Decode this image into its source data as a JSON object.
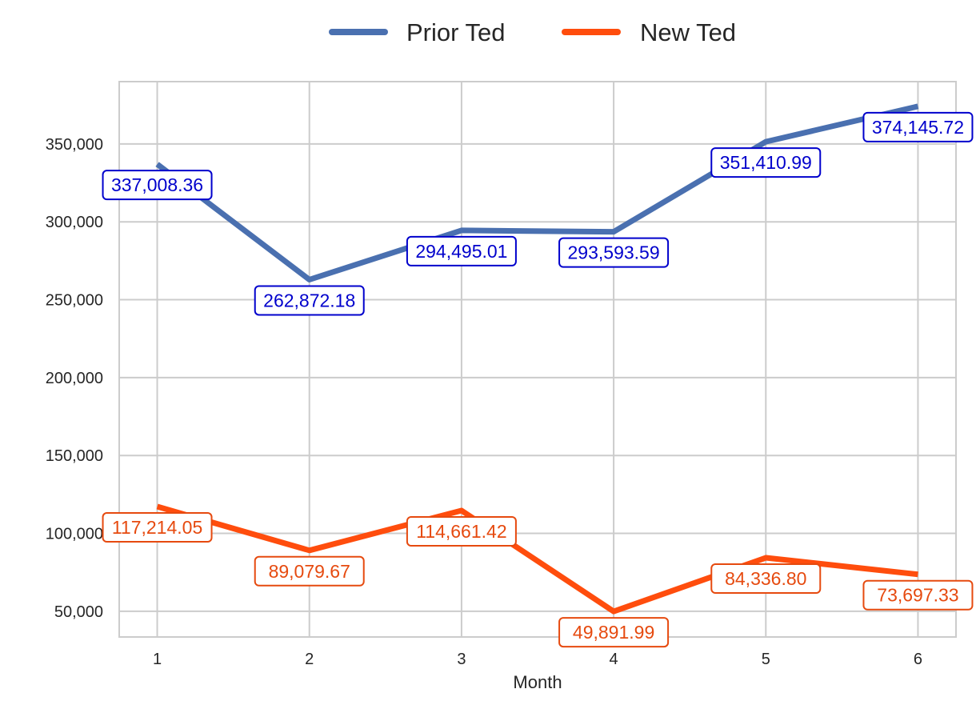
{
  "chart_data": {
    "type": "line",
    "title": "",
    "xlabel": "Month",
    "ylabel": "",
    "x": [
      1,
      2,
      3,
      4,
      5,
      6
    ],
    "xlim": [
      0.75,
      6.25
    ],
    "ylim": [
      33500,
      390000
    ],
    "yticks": [
      50000,
      100000,
      150000,
      200000,
      250000,
      300000,
      350000
    ],
    "ytick_labels": [
      "50,000",
      "100,000",
      "150,000",
      "200,000",
      "250,000",
      "300,000",
      "350,000"
    ],
    "grid": true,
    "legend_position": "top-center",
    "series": [
      {
        "name": "Prior Ted",
        "color": "#4a70b0",
        "label_color": "#0000cc",
        "values": [
          337008.36,
          262872.18,
          294495.01,
          293593.59,
          351410.99,
          374145.72
        ],
        "labels": [
          "337,008.36",
          "262,872.18",
          "294,495.01",
          "293,593.59",
          "351,410.99",
          "374,145.72"
        ]
      },
      {
        "name": "New Ted",
        "color": "#ff4d0d",
        "label_color": "#e64a0f",
        "values": [
          117214.05,
          89079.67,
          114661.42,
          49891.99,
          84336.8,
          73697.33
        ],
        "labels": [
          "117,214.05",
          "89,079.67",
          "114,661.42",
          "49,891.99",
          "84,336.80",
          "73,697.33"
        ]
      }
    ]
  }
}
